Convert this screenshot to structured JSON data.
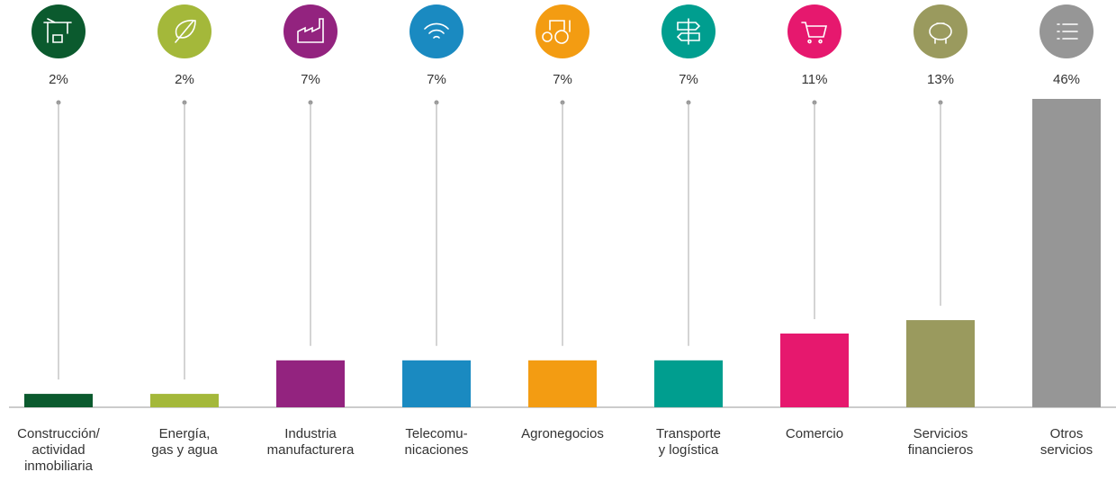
{
  "chart_data": {
    "type": "bar",
    "categories": [
      "Construcción/\nactividad\ninmobiliaria",
      "Energía,\ngas y agua",
      "Industria\nmanufacturera",
      "Telecomu-\nnicaciones",
      "Agronegocios",
      "Transporte\ny logística",
      "Comercio",
      "Servicios\nfinancieros",
      "Otros\nservicios"
    ],
    "values": [
      2,
      2,
      7,
      7,
      7,
      7,
      11,
      13,
      46
    ],
    "value_labels": [
      "2%",
      "2%",
      "7%",
      "7%",
      "7%",
      "7%",
      "11%",
      "13%",
      "46%"
    ],
    "colors": [
      "#0b5a2e",
      "#a4b83a",
      "#93237f",
      "#1a8ac1",
      "#f39c12",
      "#009e8f",
      "#e6186e",
      "#9a9a5e",
      "#969696"
    ]
  }
}
